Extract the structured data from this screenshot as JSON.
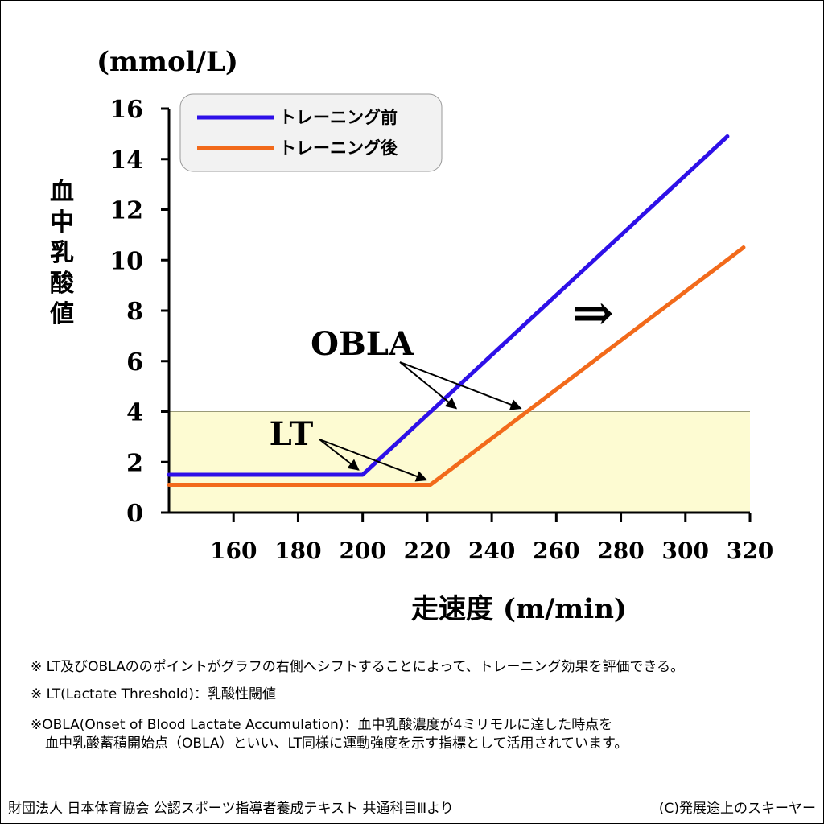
{
  "chart_data": {
    "type": "line",
    "ylabel_unit": "(mmol/L)",
    "ylabel": "血中乳酸値",
    "xlabel": "走速度 (m/min)",
    "xlim": [
      140,
      320
    ],
    "ylim": [
      0,
      16
    ],
    "x_ticks": [
      160,
      180,
      200,
      220,
      240,
      260,
      280,
      300,
      320
    ],
    "y_ticks": [
      0,
      2,
      4,
      6,
      8,
      10,
      12,
      14,
      16
    ],
    "legend_position": "top-left",
    "threshold_band": {
      "from": 0,
      "to": 4,
      "color": "#fdfbd2"
    },
    "series": [
      {
        "name": "トレーニング前",
        "color": "#2e10e8",
        "x": [
          140,
          200,
          313
        ],
        "y": [
          1.5,
          1.5,
          14.9
        ]
      },
      {
        "name": "トレーニング後",
        "color": "#f26a1b",
        "x": [
          140,
          221,
          318
        ],
        "y": [
          1.1,
          1.1,
          10.5
        ]
      }
    ],
    "annotations": {
      "obla_label": "OBLA",
      "obla_points": [
        [
          230,
          4
        ],
        [
          250,
          4
        ]
      ],
      "lt_label": "LT",
      "lt_points": [
        [
          200,
          1.5
        ],
        [
          221,
          1.1
        ]
      ],
      "arrow_symbol": "⇒"
    }
  },
  "notes": [
    "※ LT及びOBLAののポイントがグラフの右側へシフトすることによって、トレーニング効果を評価できる。",
    "※ LT(Lactate Threshold)：乳酸性閾値",
    "※OBLA(Onset of Blood Lactate Accumulation)：血中乳酸濃度が4ミリモルに達した時点を",
    "血中乳酸蓄積開始点（OBLA）といい、LT同様に運動強度を示す指標として活用されています。"
  ],
  "footer": {
    "source": "財団法人 日本体育協会 公認スポーツ指導者養成テキスト 共通科目Ⅲより",
    "credit": "(C)発展途上のスキーヤー"
  }
}
